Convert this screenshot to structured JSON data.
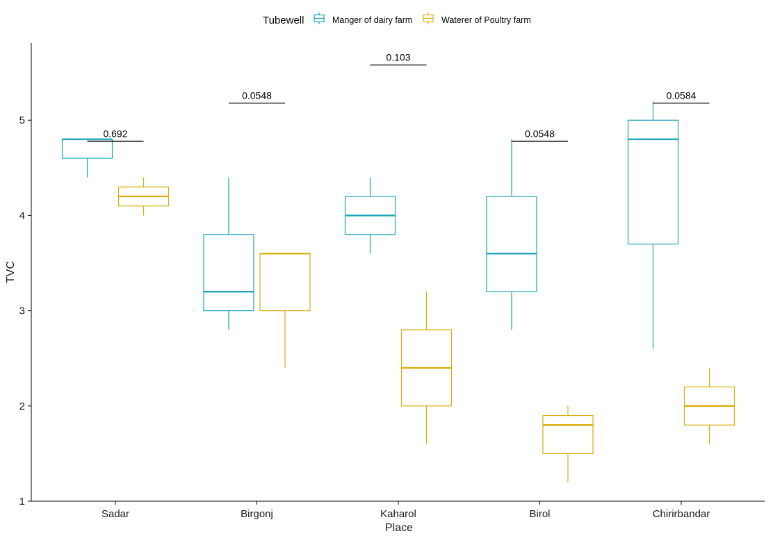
{
  "chart_data": {
    "type": "boxplot",
    "xlabel": "Place",
    "ylabel": "TVC",
    "ylim": [
      1,
      5.85
    ],
    "yticks": [
      1,
      2,
      3,
      4,
      5
    ],
    "categories": [
      "Sadar",
      "Birgonj",
      "Kaharol",
      "Birol",
      "Chirirbandar"
    ],
    "legend": {
      "title": "Tubewell",
      "position": "top",
      "entries": [
        "Manger of dairy farm",
        "Waterer of Poultry farm"
      ]
    },
    "series": [
      {
        "name": "Manger of dairy farm",
        "color": "#1AA3B8",
        "boxes": [
          {
            "min": 4.4,
            "q1": 4.6,
            "median": 4.8,
            "q3": 4.8,
            "max": 4.8
          },
          {
            "min": 2.8,
            "q1": 3.0,
            "median": 3.2,
            "q3": 3.8,
            "max": 4.4
          },
          {
            "min": 3.6,
            "q1": 3.8,
            "median": 4.0,
            "q3": 4.2,
            "max": 4.4
          },
          {
            "min": 2.8,
            "q1": 3.2,
            "median": 3.6,
            "q3": 4.2,
            "max": 4.8
          },
          {
            "min": 2.6,
            "q1": 3.7,
            "median": 4.8,
            "q3": 5.0,
            "max": 5.2
          }
        ]
      },
      {
        "name": "Waterer of Poultry farm",
        "color": "#D9AE0E",
        "boxes": [
          {
            "min": 4.0,
            "q1": 4.1,
            "median": 4.2,
            "q3": 4.3,
            "max": 4.4
          },
          {
            "min": 2.4,
            "q1": 3.0,
            "median": 3.6,
            "q3": 3.6,
            "max": 3.6
          },
          {
            "min": 1.6,
            "q1": 2.0,
            "median": 2.4,
            "q3": 2.8,
            "max": 3.2
          },
          {
            "min": 1.2,
            "q1": 1.5,
            "median": 1.8,
            "q3": 1.9,
            "max": 2.0
          },
          {
            "min": 1.6,
            "q1": 1.8,
            "median": 2.0,
            "q3": 2.2,
            "max": 2.4
          }
        ]
      }
    ],
    "annotations": [
      {
        "label": "0.692",
        "y": 4.78
      },
      {
        "label": "0.0548",
        "y": 5.18
      },
      {
        "label": "0.103",
        "y": 5.58
      },
      {
        "label": "0.0548",
        "y": 4.78
      },
      {
        "label": "0.0584",
        "y": 5.18
      }
    ],
    "grid": false
  }
}
